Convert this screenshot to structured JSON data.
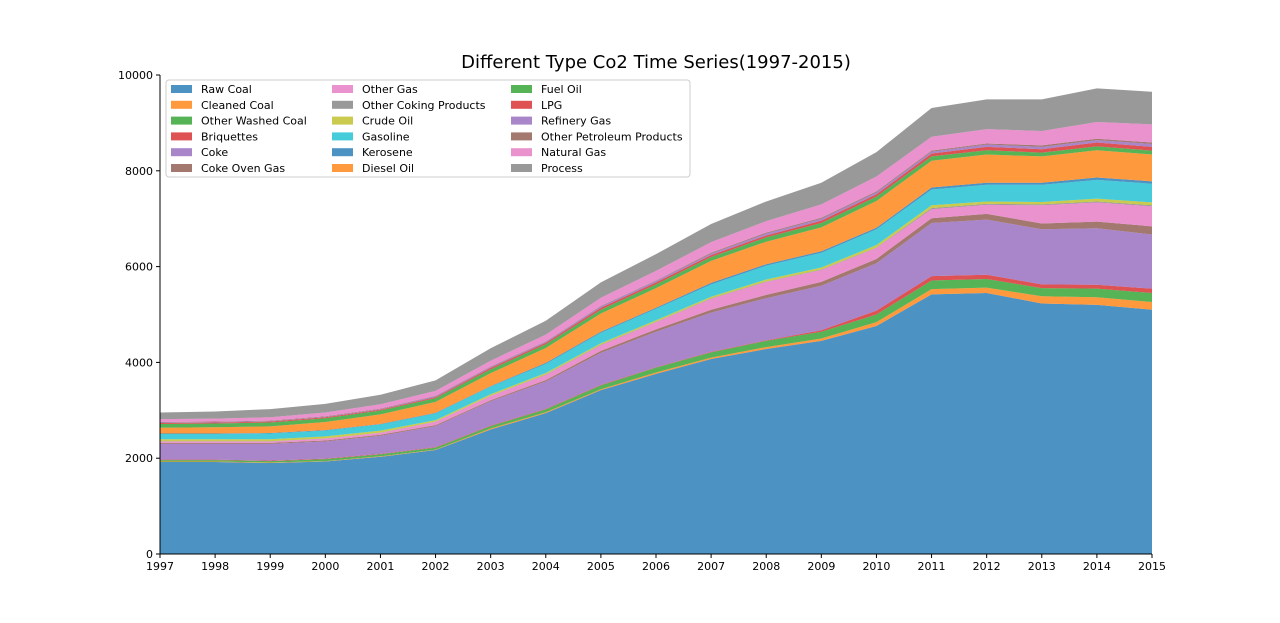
{
  "chart_data": {
    "type": "area",
    "stacked": true,
    "title": "Different Type Co2 Time Series(1997-2015)",
    "xlabel": "",
    "ylabel": "",
    "x": [
      1997,
      1998,
      1999,
      2000,
      2001,
      2002,
      2003,
      2004,
      2005,
      2006,
      2007,
      2008,
      2009,
      2010,
      2011,
      2012,
      2013,
      2014,
      2015
    ],
    "xlim": [
      1997,
      2015
    ],
    "ylim": [
      0,
      10000
    ],
    "yticks": [
      0,
      2000,
      4000,
      6000,
      8000,
      10000
    ],
    "legend_position": "upper-left",
    "legend_columns": 3,
    "series": [
      {
        "name": "Raw Coal",
        "color": "#1f77b4",
        "values": [
          1920,
          1920,
          1900,
          1930,
          2030,
          2170,
          2600,
          2940,
          3420,
          3760,
          4070,
          4280,
          4450,
          4760,
          5420,
          5450,
          5230,
          5200,
          5100
        ]
      },
      {
        "name": "Cleaned Coal",
        "color": "#ff7f0e",
        "values": [
          10,
          10,
          10,
          10,
          10,
          10,
          20,
          20,
          20,
          30,
          30,
          40,
          50,
          80,
          110,
          110,
          150,
          160,
          160
        ]
      },
      {
        "name": "Other Washed Coal",
        "color": "#2ca02c",
        "values": [
          30,
          30,
          30,
          40,
          40,
          40,
          50,
          60,
          80,
          100,
          110,
          130,
          140,
          160,
          180,
          180,
          170,
          180,
          190
        ]
      },
      {
        "name": "Briquettes",
        "color": "#d62728",
        "values": [
          10,
          10,
          10,
          10,
          10,
          10,
          10,
          10,
          10,
          10,
          10,
          10,
          30,
          80,
          90,
          90,
          80,
          80,
          90
        ]
      },
      {
        "name": "Coke",
        "color": "#9467bd",
        "values": [
          330,
          330,
          350,
          360,
          380,
          440,
          510,
          570,
          670,
          740,
          820,
          880,
          930,
          990,
          1110,
          1150,
          1150,
          1180,
          1130
        ]
      },
      {
        "name": "Coke Oven Gas",
        "color": "#8c564b",
        "values": [
          20,
          20,
          20,
          20,
          20,
          20,
          20,
          30,
          40,
          50,
          60,
          70,
          80,
          90,
          100,
          120,
          120,
          140,
          170
        ]
      },
      {
        "name": "Other Gas",
        "color": "#e377c2",
        "values": [
          30,
          30,
          30,
          40,
          40,
          70,
          90,
          110,
          120,
          150,
          230,
          270,
          250,
          230,
          190,
          190,
          380,
          400,
          420
        ]
      },
      {
        "name": "Other Coking Products",
        "color": "#7f7f7f",
        "values": [
          5,
          5,
          5,
          5,
          5,
          5,
          5,
          10,
          10,
          10,
          10,
          10,
          10,
          10,
          20,
          20,
          20,
          20,
          20
        ]
      },
      {
        "name": "Crude Oil",
        "color": "#bcbd22",
        "values": [
          40,
          40,
          40,
          40,
          40,
          30,
          30,
          30,
          30,
          30,
          30,
          40,
          40,
          50,
          60,
          50,
          50,
          60,
          60
        ]
      },
      {
        "name": "Gasoline",
        "color": "#17becf",
        "values": [
          110,
          110,
          120,
          120,
          130,
          140,
          160,
          190,
          220,
          240,
          260,
          290,
          310,
          330,
          330,
          350,
          360,
          390,
          390
        ]
      },
      {
        "name": "Kerosene",
        "color": "#1f77b4",
        "values": [
          10,
          10,
          10,
          10,
          10,
          10,
          10,
          20,
          20,
          20,
          30,
          30,
          30,
          30,
          40,
          40,
          40,
          50,
          50
        ]
      },
      {
        "name": "Diesel Oil",
        "color": "#ff7f0e",
        "values": [
          120,
          130,
          140,
          170,
          200,
          230,
          270,
          310,
          380,
          410,
          460,
          470,
          500,
          560,
          560,
          590,
          550,
          570,
          560
        ]
      },
      {
        "name": "Fuel Oil",
        "color": "#2ca02c",
        "values": [
          80,
          80,
          80,
          80,
          80,
          80,
          80,
          80,
          80,
          80,
          80,
          90,
          90,
          90,
          90,
          90,
          80,
          80,
          80
        ]
      },
      {
        "name": "LPG",
        "color": "#d62728",
        "values": [
          20,
          20,
          20,
          20,
          20,
          20,
          30,
          30,
          40,
          40,
          40,
          40,
          50,
          50,
          60,
          70,
          70,
          80,
          80
        ]
      },
      {
        "name": "Refinery Gas",
        "color": "#9467bd",
        "values": [
          10,
          10,
          10,
          10,
          10,
          20,
          20,
          20,
          30,
          30,
          30,
          40,
          40,
          40,
          40,
          50,
          50,
          50,
          60
        ]
      },
      {
        "name": "Other Petroleum Products",
        "color": "#8c564b",
        "values": [
          10,
          10,
          10,
          10,
          10,
          10,
          10,
          10,
          10,
          10,
          20,
          20,
          20,
          20,
          20,
          20,
          30,
          30,
          30
        ]
      },
      {
        "name": "Natural Gas",
        "color": "#e377c2",
        "values": [
          60,
          60,
          70,
          80,
          90,
          100,
          120,
          140,
          170,
          200,
          220,
          240,
          280,
          310,
          290,
          300,
          300,
          350,
          380
        ]
      },
      {
        "name": "Process",
        "color": "#7f7f7f",
        "values": [
          140,
          150,
          170,
          180,
          200,
          220,
          260,
          290,
          320,
          350,
          380,
          410,
          450,
          510,
          600,
          620,
          660,
          700,
          680
        ]
      }
    ]
  }
}
